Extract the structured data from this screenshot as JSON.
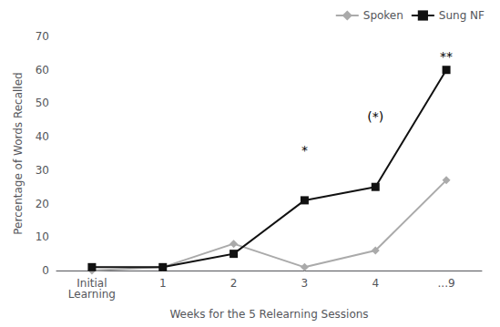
{
  "chart_data": {
    "type": "line",
    "xlabel": "Weeks for the 5 Relearning Sessions",
    "ylabel": "Percentage of Words Recalled",
    "categories": [
      "Initial\nLearning",
      "1",
      "2",
      "3",
      "4",
      "...9"
    ],
    "series": [
      {
        "name": "Spoken",
        "color": "#aaaaaa",
        "marker": "diamond",
        "values": [
          0,
          1,
          8,
          1,
          6,
          27
        ]
      },
      {
        "name": "Sung NF",
        "color": "#111111",
        "marker": "square",
        "values": [
          1,
          1,
          5,
          21,
          25,
          60
        ]
      }
    ],
    "ylim": [
      0,
      70
    ],
    "yticks": [
      0,
      10,
      20,
      30,
      40,
      50,
      60,
      70
    ],
    "annotations": [
      {
        "text": "*",
        "x": "3",
        "y": 34
      },
      {
        "text": "(*)",
        "x": "4",
        "y": 44
      },
      {
        "text": "**",
        "x": "...9",
        "y": 62
      }
    ],
    "legend": "upper right",
    "grid": false
  }
}
